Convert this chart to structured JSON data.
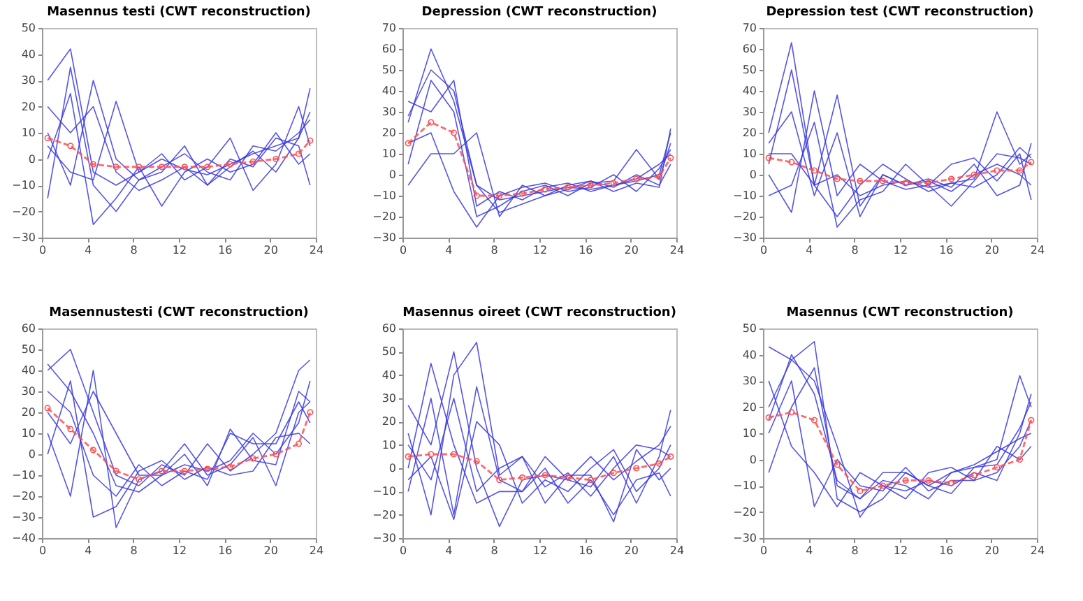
{
  "chart_data": [
    {
      "type": "line",
      "title": "Masennus testi (CWT reconstruction)",
      "x": [
        0.5,
        2.5,
        4.5,
        6.5,
        8.5,
        10.5,
        12.5,
        14.5,
        16.5,
        18.5,
        20.5,
        22.5,
        23.5
      ],
      "xlim": [
        0,
        24
      ],
      "xticks": [
        0,
        4,
        8,
        12,
        16,
        20,
        24
      ],
      "ylim": [
        -30,
        50
      ],
      "yticks": [
        -30,
        -20,
        -10,
        0,
        10,
        20,
        30,
        40,
        50
      ],
      "grid": false,
      "series": [
        {
          "color": "#3838e0",
          "marker": "none",
          "line_style": "solid",
          "values": [
            30,
            42,
            -5,
            -10,
            -5,
            0,
            -4,
            -6,
            -2,
            2,
            5,
            8,
            27
          ]
        },
        {
          "color": "#3838e0",
          "marker": "none",
          "line_style": "solid",
          "values": [
            -15,
            35,
            -10,
            -20,
            -8,
            -3,
            2,
            -5,
            -8,
            5,
            3,
            10,
            15
          ]
        },
        {
          "color": "#3838e0",
          "marker": "none",
          "line_style": "solid",
          "values": [
            20,
            10,
            20,
            -5,
            -12,
            -8,
            -3,
            -10,
            0,
            -3,
            8,
            5,
            -10
          ]
        },
        {
          "color": "#3838e0",
          "marker": "none",
          "line_style": "solid",
          "values": [
            5,
            -5,
            -8,
            22,
            -5,
            2,
            -8,
            -3,
            8,
            -12,
            -2,
            20,
            5
          ]
        },
        {
          "color": "#3838e0",
          "marker": "none",
          "line_style": "solid",
          "values": [
            0,
            25,
            -25,
            -15,
            -3,
            -18,
            -5,
            0,
            -5,
            -2,
            10,
            -2,
            2
          ]
        },
        {
          "color": "#3838e0",
          "marker": "none",
          "line_style": "solid",
          "values": [
            10,
            -10,
            30,
            0,
            -8,
            -5,
            5,
            -10,
            -3,
            3,
            -5,
            8,
            18
          ]
        },
        {
          "color": "#ff5050",
          "marker": "circle",
          "line_style": "dashed",
          "values": [
            8,
            5,
            -2,
            -3,
            -3,
            -3,
            -3,
            -3,
            -2,
            -1,
            0,
            2,
            7
          ]
        }
      ]
    },
    {
      "type": "line",
      "title": "Depression (CWT reconstruction)",
      "x": [
        0.5,
        2.5,
        4.5,
        6.5,
        8.5,
        10.5,
        12.5,
        14.5,
        16.5,
        18.5,
        20.5,
        22.5,
        23.5
      ],
      "xlim": [
        0,
        24
      ],
      "xticks": [
        0,
        4,
        8,
        12,
        16,
        20,
        24
      ],
      "ylim": [
        -30,
        70
      ],
      "yticks": [
        -30,
        -20,
        -10,
        0,
        10,
        20,
        30,
        40,
        50,
        60,
        70
      ],
      "grid": false,
      "series": [
        {
          "color": "#3838e0",
          "marker": "none",
          "line_style": "solid",
          "values": [
            25,
            60,
            35,
            -5,
            -12,
            -10,
            -8,
            -6,
            -7,
            -5,
            -3,
            0,
            20
          ]
        },
        {
          "color": "#3838e0",
          "marker": "none",
          "line_style": "solid",
          "values": [
            5,
            45,
            30,
            -20,
            -15,
            -8,
            -5,
            -10,
            -4,
            -3,
            12,
            -2,
            15
          ]
        },
        {
          "color": "#3838e0",
          "marker": "none",
          "line_style": "solid",
          "values": [
            35,
            30,
            45,
            -15,
            -8,
            -12,
            -6,
            -4,
            -8,
            -5,
            -2,
            5,
            10
          ]
        },
        {
          "color": "#3838e0",
          "marker": "none",
          "line_style": "solid",
          "values": [
            -5,
            10,
            10,
            20,
            -20,
            -5,
            -10,
            -7,
            -3,
            -6,
            0,
            -5,
            5
          ]
        },
        {
          "color": "#3838e0",
          "marker": "none",
          "line_style": "solid",
          "values": [
            15,
            20,
            -8,
            -25,
            -10,
            -6,
            -4,
            -8,
            -6,
            0,
            -8,
            3,
            12
          ]
        },
        {
          "color": "#3838e0",
          "marker": "none",
          "line_style": "solid",
          "values": [
            28,
            50,
            40,
            -5,
            -18,
            -14,
            -10,
            -5,
            -3,
            -8,
            -4,
            -6,
            22
          ]
        },
        {
          "color": "#ff5050",
          "marker": "circle",
          "line_style": "dashed",
          "values": [
            15,
            25,
            20,
            -10,
            -10,
            -9,
            -7,
            -6,
            -5,
            -4,
            -2,
            -1,
            8
          ]
        }
      ]
    },
    {
      "type": "line",
      "title": "Depression test (CWT reconstruction)",
      "x": [
        0.5,
        2.5,
        4.5,
        6.5,
        8.5,
        10.5,
        12.5,
        14.5,
        16.5,
        18.5,
        20.5,
        22.5,
        23.5
      ],
      "xlim": [
        0,
        24
      ],
      "xticks": [
        0,
        4,
        8,
        12,
        16,
        20,
        24
      ],
      "ylim": [
        -30,
        70
      ],
      "yticks": [
        -30,
        -20,
        -10,
        0,
        10,
        20,
        30,
        40,
        50,
        60,
        70
      ],
      "grid": false,
      "series": [
        {
          "color": "#3838e0",
          "marker": "none",
          "line_style": "solid",
          "values": [
            20,
            63,
            -5,
            0,
            -10,
            -5,
            -3,
            -6,
            -4,
            -2,
            30,
            5,
            10
          ]
        },
        {
          "color": "#3838e0",
          "marker": "none",
          "line_style": "solid",
          "values": [
            5,
            50,
            -5,
            38,
            -15,
            0,
            -5,
            -3,
            -8,
            0,
            5,
            0,
            -5
          ]
        },
        {
          "color": "#3838e0",
          "marker": "none",
          "line_style": "solid",
          "values": [
            -10,
            -5,
            25,
            -25,
            -12,
            -8,
            5,
            -5,
            -15,
            -3,
            10,
            8,
            5
          ]
        },
        {
          "color": "#3838e0",
          "marker": "none",
          "line_style": "solid",
          "values": [
            15,
            30,
            -10,
            20,
            -20,
            0,
            -5,
            -2,
            -6,
            5,
            -10,
            -5,
            15
          ]
        },
        {
          "color": "#3838e0",
          "marker": "none",
          "line_style": "solid",
          "values": [
            0,
            -18,
            40,
            -10,
            5,
            -3,
            -7,
            -5,
            5,
            8,
            -3,
            10,
            -12
          ]
        },
        {
          "color": "#3838e0",
          "marker": "none",
          "line_style": "solid",
          "values": [
            10,
            10,
            -5,
            -20,
            -5,
            5,
            -2,
            -8,
            -4,
            -6,
            0,
            13,
            8
          ]
        },
        {
          "color": "#ff5050",
          "marker": "circle",
          "line_style": "dashed",
          "values": [
            8,
            6,
            2,
            -2,
            -3,
            -3,
            -4,
            -4,
            -2,
            0,
            2,
            2,
            6
          ]
        }
      ]
    },
    {
      "type": "line",
      "title": "Masennustesti (CWT reconstruction)",
      "x": [
        0.5,
        2.5,
        4.5,
        6.5,
        8.5,
        10.5,
        12.5,
        14.5,
        16.5,
        18.5,
        20.5,
        22.5,
        23.5
      ],
      "xlim": [
        0,
        24
      ],
      "xticks": [
        0,
        4,
        8,
        12,
        16,
        20,
        24
      ],
      "ylim": [
        -40,
        60
      ],
      "yticks": [
        -40,
        -30,
        -20,
        -10,
        0,
        10,
        20,
        30,
        40,
        50,
        60
      ],
      "grid": false,
      "series": [
        {
          "color": "#3838e0",
          "marker": "none",
          "line_style": "solid",
          "values": [
            40,
            50,
            20,
            -10,
            -15,
            -5,
            -10,
            5,
            -8,
            0,
            10,
            40,
            45
          ]
        },
        {
          "color": "#3838e0",
          "marker": "none",
          "line_style": "solid",
          "values": [
            10,
            -20,
            40,
            -35,
            -12,
            -8,
            5,
            -10,
            -5,
            8,
            -15,
            20,
            25
          ]
        },
        {
          "color": "#3838e0",
          "marker": "none",
          "line_style": "solid",
          "values": [
            30,
            20,
            -10,
            -20,
            -5,
            -15,
            -8,
            -12,
            10,
            5,
            5,
            25,
            15
          ]
        },
        {
          "color": "#3838e0",
          "marker": "none",
          "line_style": "solid",
          "values": [
            0,
            35,
            -30,
            -25,
            -8,
            -3,
            -12,
            -6,
            -10,
            -8,
            8,
            10,
            5
          ]
        },
        {
          "color": "#3838e0",
          "marker": "none",
          "line_style": "solid",
          "values": [
            20,
            5,
            30,
            10,
            -10,
            -10,
            0,
            -15,
            12,
            -3,
            -5,
            30,
            25
          ]
        },
        {
          "color": "#3838e0",
          "marker": "none",
          "line_style": "solid",
          "values": [
            43,
            30,
            10,
            -15,
            -18,
            -10,
            -5,
            -8,
            -3,
            10,
            0,
            15,
            35
          ]
        },
        {
          "color": "#ff5050",
          "marker": "circle",
          "line_style": "dashed",
          "values": [
            22,
            12,
            2,
            -8,
            -12,
            -8,
            -8,
            -7,
            -6,
            -2,
            0,
            5,
            20
          ]
        }
      ]
    },
    {
      "type": "line",
      "title": "Masennus oireet (CWT reconstruction)",
      "x": [
        0.5,
        2.5,
        4.5,
        6.5,
        8.5,
        10.5,
        12.5,
        14.5,
        16.5,
        18.5,
        20.5,
        22.5,
        23.5
      ],
      "xlim": [
        0,
        24
      ],
      "xticks": [
        0,
        4,
        8,
        12,
        16,
        20,
        24
      ],
      "ylim": [
        -30,
        60
      ],
      "yticks": [
        -30,
        -20,
        -10,
        0,
        10,
        20,
        30,
        40,
        50,
        60
      ],
      "grid": false,
      "series": [
        {
          "color": "#3838e0",
          "marker": "none",
          "line_style": "solid",
          "values": [
            27,
            10,
            50,
            0,
            -25,
            -5,
            -3,
            -5,
            -8,
            5,
            -15,
            5,
            25
          ]
        },
        {
          "color": "#3838e0",
          "marker": "none",
          "line_style": "solid",
          "values": [
            -10,
            30,
            -20,
            35,
            -5,
            -10,
            0,
            -15,
            -5,
            -20,
            -5,
            -2,
            -12
          ]
        },
        {
          "color": "#3838e0",
          "marker": "none",
          "line_style": "solid",
          "values": [
            15,
            -20,
            40,
            54,
            -3,
            5,
            -8,
            -2,
            -12,
            0,
            10,
            8,
            5
          ]
        },
        {
          "color": "#3838e0",
          "marker": "none",
          "line_style": "solid",
          "values": [
            0,
            45,
            10,
            -15,
            -10,
            -10,
            5,
            -5,
            5,
            -5,
            3,
            10,
            18
          ]
        },
        {
          "color": "#3838e0",
          "marker": "none",
          "line_style": "solid",
          "values": [
            -5,
            5,
            -22,
            20,
            10,
            -15,
            -5,
            -10,
            0,
            8,
            -10,
            0,
            10
          ]
        },
        {
          "color": "#3838e0",
          "marker": "none",
          "line_style": "solid",
          "values": [
            10,
            -5,
            30,
            -10,
            0,
            5,
            -15,
            -3,
            -3,
            -23,
            8,
            -5,
            0
          ]
        },
        {
          "color": "#ff5050",
          "marker": "circle",
          "line_style": "dashed",
          "values": [
            5,
            6,
            6,
            3,
            -5,
            -4,
            -3,
            -4,
            -5,
            -2,
            0,
            2,
            5
          ]
        }
      ]
    },
    {
      "type": "line",
      "title": "Masennus (CWT reconstruction)",
      "x": [
        0.5,
        2.5,
        4.5,
        6.5,
        8.5,
        10.5,
        12.5,
        14.5,
        16.5,
        18.5,
        20.5,
        22.5,
        23.5
      ],
      "xlim": [
        0,
        24
      ],
      "xticks": [
        0,
        4,
        8,
        12,
        16,
        20,
        24
      ],
      "ylim": [
        -30,
        50
      ],
      "yticks": [
        -30,
        -20,
        -10,
        0,
        10,
        20,
        30,
        40,
        50
      ],
      "grid": false,
      "series": [
        {
          "color": "#3838e0",
          "marker": "none",
          "line_style": "solid",
          "values": [
            43,
            38,
            45,
            -15,
            -20,
            -15,
            -5,
            -10,
            -5,
            -3,
            0,
            32,
            20
          ]
        },
        {
          "color": "#3838e0",
          "marker": "none",
          "line_style": "solid",
          "values": [
            10,
            30,
            -18,
            0,
            -10,
            -12,
            -3,
            -12,
            -8,
            -8,
            -5,
            5,
            15
          ]
        },
        {
          "color": "#3838e0",
          "marker": "none",
          "line_style": "solid",
          "values": [
            -5,
            20,
            35,
            -10,
            -15,
            -8,
            -10,
            -15,
            -5,
            -2,
            3,
            8,
            10
          ]
        },
        {
          "color": "#3838e0",
          "marker": "none",
          "line_style": "solid",
          "values": [
            20,
            38,
            30,
            5,
            -22,
            -10,
            -12,
            -8,
            -10,
            -5,
            -8,
            10,
            25
          ]
        },
        {
          "color": "#3838e0",
          "marker": "none",
          "line_style": "solid",
          "values": [
            30,
            5,
            -5,
            -18,
            -5,
            -10,
            -15,
            -5,
            -3,
            -8,
            5,
            0,
            5
          ]
        },
        {
          "color": "#3838e0",
          "marker": "none",
          "line_style": "solid",
          "values": [
            15,
            40,
            25,
            -8,
            -15,
            -5,
            -5,
            -10,
            -13,
            -3,
            -2,
            12,
            22
          ]
        },
        {
          "color": "#ff5050",
          "marker": "circle",
          "line_style": "dashed",
          "values": [
            16,
            18,
            15,
            -2,
            -12,
            -10,
            -8,
            -8,
            -9,
            -6,
            -3,
            0,
            15
          ]
        }
      ]
    }
  ]
}
